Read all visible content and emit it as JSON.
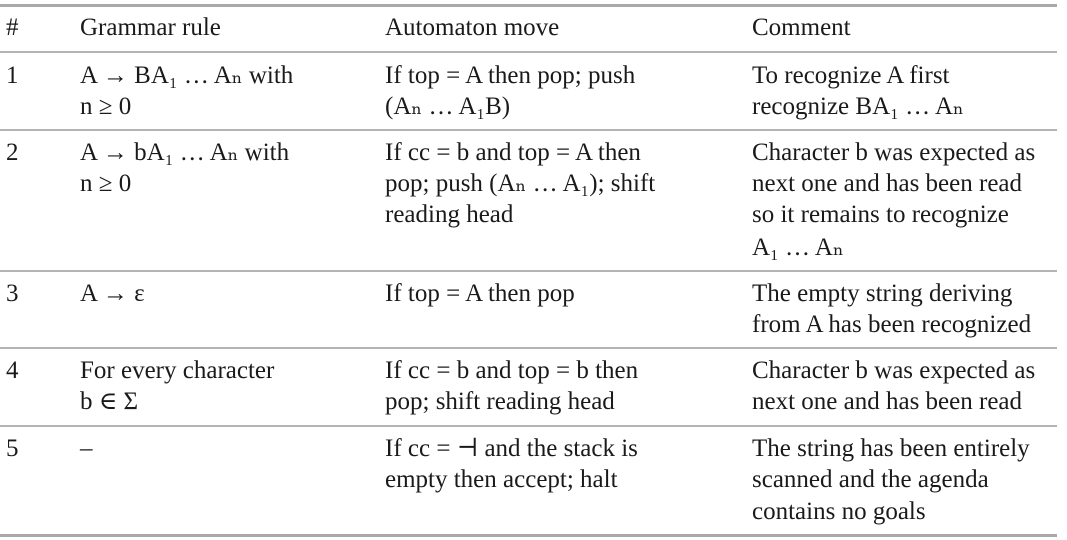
{
  "table": {
    "headers": [
      "#",
      "Grammar rule",
      "Automaton move",
      "Comment"
    ],
    "rows": [
      {
        "num": "1",
        "rule": [
          "A → BA₁ … Aₙ with",
          "n ≥ 0"
        ],
        "move": [
          "If top = A then pop; push",
          "(Aₙ … A₁B)"
        ],
        "comment": [
          "To recognize A first",
          "recognize BA₁ … Aₙ"
        ]
      },
      {
        "num": "2",
        "rule": [
          "A → bA₁ … Aₙ with",
          "n ≥ 0"
        ],
        "move": [
          "If cc = b and top = A then",
          "pop; push (Aₙ … A₁); shift",
          "reading head"
        ],
        "comment": [
          "Character b was expected as",
          "next one and has been read",
          "so it remains to recognize",
          "A₁ … Aₙ"
        ]
      },
      {
        "num": "3",
        "rule": [
          "A → ε"
        ],
        "move": [
          "If top = A then pop"
        ],
        "comment": [
          "The empty string deriving",
          "from A has been recognized"
        ]
      },
      {
        "num": "4",
        "rule": [
          "For every character",
          "b ∈ Σ"
        ],
        "move": [
          "If cc = b and top = b then",
          "pop; shift reading head"
        ],
        "comment": [
          "Character b was expected as",
          "next one and has been read"
        ]
      },
      {
        "num": "5",
        "rule": [
          "–"
        ],
        "move": [
          "If cc = ⊣ and the stack is",
          "empty then accept; halt"
        ],
        "comment": [
          "The string has been entirely",
          "scanned and the agenda",
          "contains no goals"
        ]
      }
    ]
  }
}
